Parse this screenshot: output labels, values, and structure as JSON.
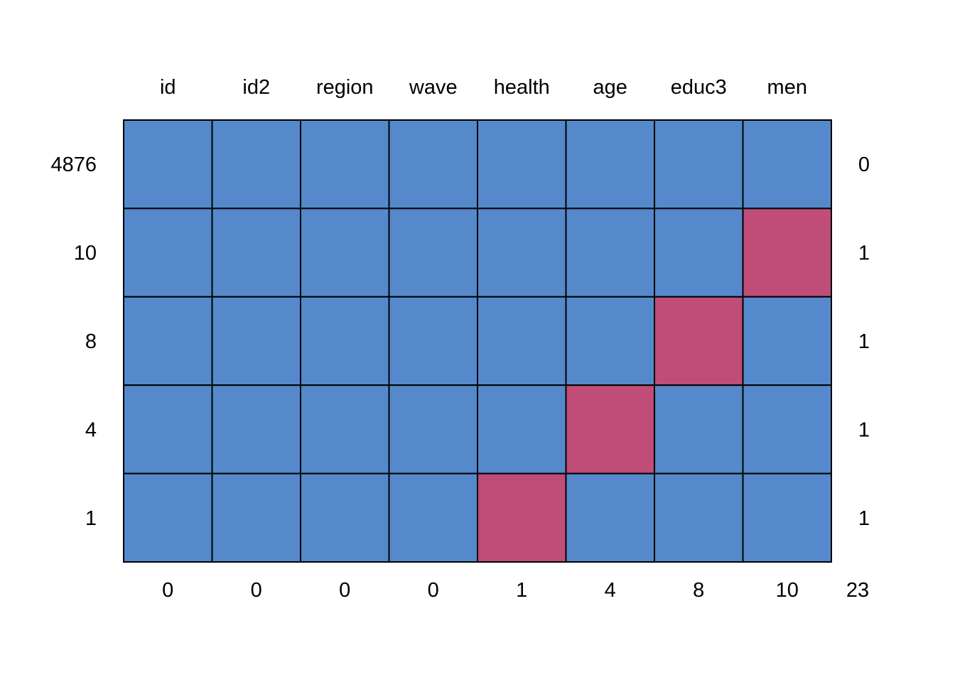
{
  "chart_data": {
    "type": "heatmap",
    "columns": [
      "id",
      "id2",
      "region",
      "wave",
      "health",
      "age",
      "educ3",
      "men"
    ],
    "rows": [
      {
        "count": "4876",
        "cells": [
          1,
          1,
          1,
          1,
          1,
          1,
          1,
          1
        ],
        "missing_vars": "0"
      },
      {
        "count": "10",
        "cells": [
          1,
          1,
          1,
          1,
          1,
          1,
          1,
          0
        ],
        "missing_vars": "1"
      },
      {
        "count": "8",
        "cells": [
          1,
          1,
          1,
          1,
          1,
          1,
          0,
          1
        ],
        "missing_vars": "1"
      },
      {
        "count": "4",
        "cells": [
          1,
          1,
          1,
          1,
          1,
          0,
          1,
          1
        ],
        "missing_vars": "1"
      },
      {
        "count": "1",
        "cells": [
          1,
          1,
          1,
          1,
          0,
          1,
          1,
          1
        ],
        "missing_vars": "1"
      }
    ],
    "column_missing_totals": [
      "0",
      "0",
      "0",
      "0",
      "1",
      "4",
      "8",
      "10"
    ],
    "total_missing": "23",
    "colors": {
      "observed": "#5589cb",
      "missing": "#c04d77",
      "border": "#000000"
    }
  }
}
